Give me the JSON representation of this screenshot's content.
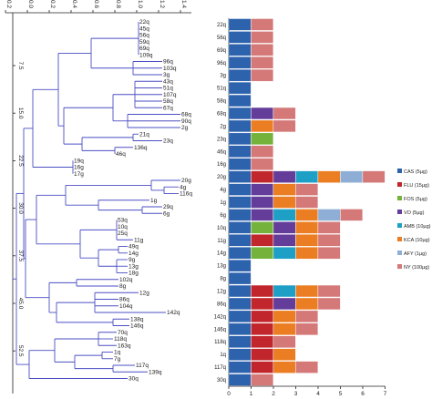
{
  "chart_data": [
    {
      "type": "dendrogram",
      "top_axis": {
        "ticks": [
          "-0.2",
          "0.0",
          "0.2",
          "0.4",
          "0.6",
          "0.8",
          "1.0",
          "1.2",
          "1.4"
        ]
      },
      "side_axis": {
        "ticks": [
          "7.5",
          "15.0",
          "22.5",
          "30.0",
          "37.5",
          "45.0",
          "52.5"
        ]
      },
      "leaves": [
        "22q",
        "45q",
        "56q",
        "59q",
        "69q",
        "109q",
        "96q",
        "103q",
        "3g",
        "43q",
        "51q",
        "107q",
        "58q",
        "67q",
        "68q",
        "90q",
        "2g",
        "21q",
        "23q",
        "136q",
        "46q",
        "19q",
        "16g",
        "17g",
        "20g",
        "4g",
        "116q",
        "1g",
        "29q",
        "6g",
        "53q",
        "10q",
        "25q",
        "11g",
        "49q",
        "14g",
        "9g",
        "13g",
        "18g",
        "102q",
        "8g",
        "12g",
        "86q",
        "104q",
        "142q",
        "138q",
        "146q",
        "70q",
        "118q",
        "163q",
        "1q",
        "7g",
        "117q",
        "139q",
        "30q"
      ]
    },
    {
      "type": "stacked_bar",
      "orientation": "horizontal",
      "categories": [
        "22q",
        "56q",
        "69q",
        "96q",
        "3g",
        "51q",
        "58q",
        "68q",
        "2g",
        "23q",
        "46q",
        "16g",
        "20g",
        "4g",
        "1g",
        "6g",
        "10q",
        "11g",
        "14g",
        "13g",
        "8g",
        "12g",
        "86q",
        "142q",
        "146q",
        "118q",
        "1q",
        "117q",
        "30q"
      ],
      "x_ticks": [
        "0",
        "1",
        "2",
        "3",
        "4",
        "5",
        "6",
        "7"
      ],
      "xlim": [
        0,
        7
      ],
      "series": [
        {
          "name": "CAS (5µg)",
          "color": "#2d62ad",
          "values": [
            1,
            1,
            1,
            1,
            1,
            1,
            1,
            1,
            1,
            1,
            1,
            1,
            1,
            1,
            1,
            1,
            1,
            1,
            1,
            1,
            1,
            1,
            1,
            1,
            1,
            1,
            1,
            1,
            1
          ]
        },
        {
          "name": "FLU (15µg)",
          "color": "#c0262b",
          "values": [
            0,
            0,
            0,
            0,
            0,
            0,
            0,
            0,
            0,
            0,
            0,
            0,
            1,
            0,
            0,
            0,
            0,
            1,
            0,
            0,
            0,
            1,
            1,
            1,
            1,
            1,
            1,
            1,
            0
          ]
        },
        {
          "name": "FOS (5µg)",
          "color": "#74b23b",
          "values": [
            0,
            0,
            0,
            0,
            0,
            0,
            0,
            0,
            0,
            1,
            0,
            0,
            0,
            0,
            0,
            0,
            1,
            0,
            1,
            0,
            0,
            0,
            0,
            0,
            0,
            0,
            0,
            0,
            0
          ]
        },
        {
          "name": "VO (5µg)",
          "color": "#643d9a",
          "values": [
            0,
            0,
            0,
            0,
            0,
            0,
            0,
            1,
            0,
            0,
            0,
            0,
            1,
            1,
            1,
            1,
            1,
            1,
            0,
            0,
            0,
            0,
            1,
            0,
            0,
            0,
            0,
            0,
            0
          ]
        },
        {
          "name": "AMB (10µg)",
          "color": "#1e9fc6",
          "values": [
            0,
            0,
            0,
            0,
            0,
            0,
            0,
            0,
            0,
            0,
            0,
            0,
            1,
            0,
            0,
            1,
            0,
            0,
            1,
            0,
            0,
            1,
            0,
            0,
            0,
            0,
            0,
            0,
            0
          ]
        },
        {
          "name": "KCA (10µg)",
          "color": "#eb7d22",
          "values": [
            0,
            0,
            0,
            0,
            0,
            0,
            0,
            0,
            1,
            0,
            0,
            0,
            1,
            1,
            1,
            1,
            1,
            1,
            1,
            0,
            0,
            1,
            1,
            1,
            1,
            0,
            1,
            1,
            0
          ]
        },
        {
          "name": "AFY (1µg)",
          "color": "#8faed6",
          "values": [
            0,
            0,
            0,
            0,
            0,
            0,
            0,
            0,
            0,
            0,
            0,
            0,
            1,
            0,
            0,
            1,
            0,
            0,
            0,
            0,
            0,
            0,
            0,
            0,
            0,
            0,
            0,
            0,
            0
          ]
        },
        {
          "name": "NY (100µg)",
          "color": "#d47878",
          "values": [
            1,
            1,
            1,
            1,
            1,
            0,
            0,
            1,
            1,
            0,
            1,
            1,
            1,
            1,
            1,
            1,
            1,
            1,
            1,
            0,
            0,
            1,
            1,
            1,
            1,
            1,
            0,
            1,
            1
          ]
        }
      ]
    }
  ]
}
